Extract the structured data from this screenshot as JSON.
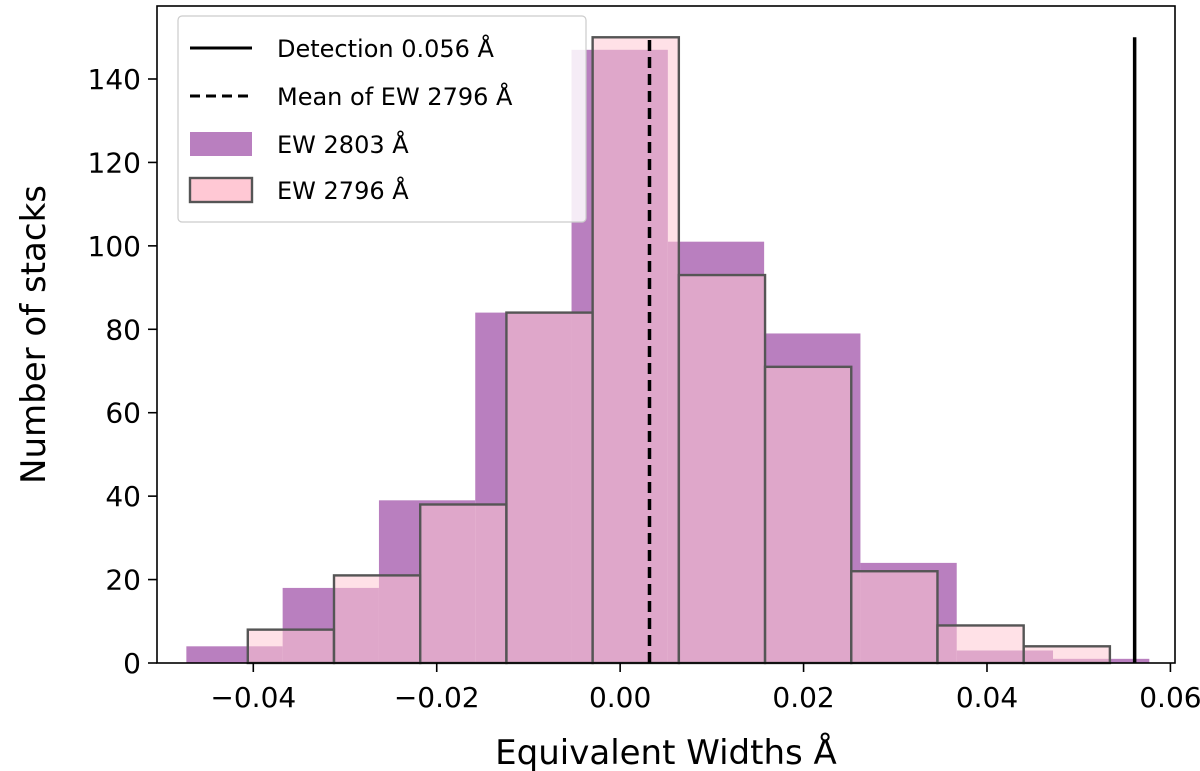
{
  "chart_data": {
    "type": "bar",
    "xlabel": "Equivalent Widths Å",
    "ylabel": "Number of stacks",
    "xlim": [
      -0.0505,
      0.0605
    ],
    "ylim": [
      0,
      157.5
    ],
    "xticks": [
      -0.04,
      -0.02,
      0.0,
      0.02,
      0.04,
      0.06
    ],
    "xtick_labels": [
      "−0.04",
      "−0.02",
      "0.00",
      "0.02",
      "0.04",
      "0.06"
    ],
    "yticks": [
      0,
      20,
      40,
      60,
      80,
      100,
      120,
      140
    ],
    "ytick_labels": [
      "0",
      "20",
      "40",
      "60",
      "80",
      "100",
      "120",
      "140"
    ],
    "grid": false,
    "legend_position": "top-left",
    "series": [
      {
        "name": "EW 2803 Å",
        "color": "#b97fbf",
        "outline": false,
        "bin_edges": [
          -0.0473,
          -0.0368,
          -0.0263,
          -0.0158,
          -0.0053,
          0.0052,
          0.0157,
          0.0262,
          0.0367,
          0.0472,
          0.0577
        ],
        "counts": [
          4,
          18,
          39,
          84,
          147,
          101,
          79,
          24,
          3,
          1
        ]
      },
      {
        "name": "EW 2796 Å",
        "color": "#ffc8d4",
        "edgecolor": "#555555",
        "outline": true,
        "bin_edges": [
          -0.0406,
          -0.0312,
          -0.0218,
          -0.0124,
          -0.003,
          0.0064,
          0.0158,
          0.0252,
          0.0346,
          0.044,
          0.0534
        ],
        "counts": [
          8,
          21,
          38,
          84,
          150,
          93,
          71,
          22,
          9,
          4
        ]
      }
    ],
    "vlines": [
      {
        "name": "Detection 0.056 Å",
        "x": 0.0561,
        "ymax": 150,
        "style": "solid"
      },
      {
        "name": "Mean of EW 2796 Å",
        "x": 0.0032,
        "ymax": 150,
        "style": "dashed"
      }
    ]
  }
}
